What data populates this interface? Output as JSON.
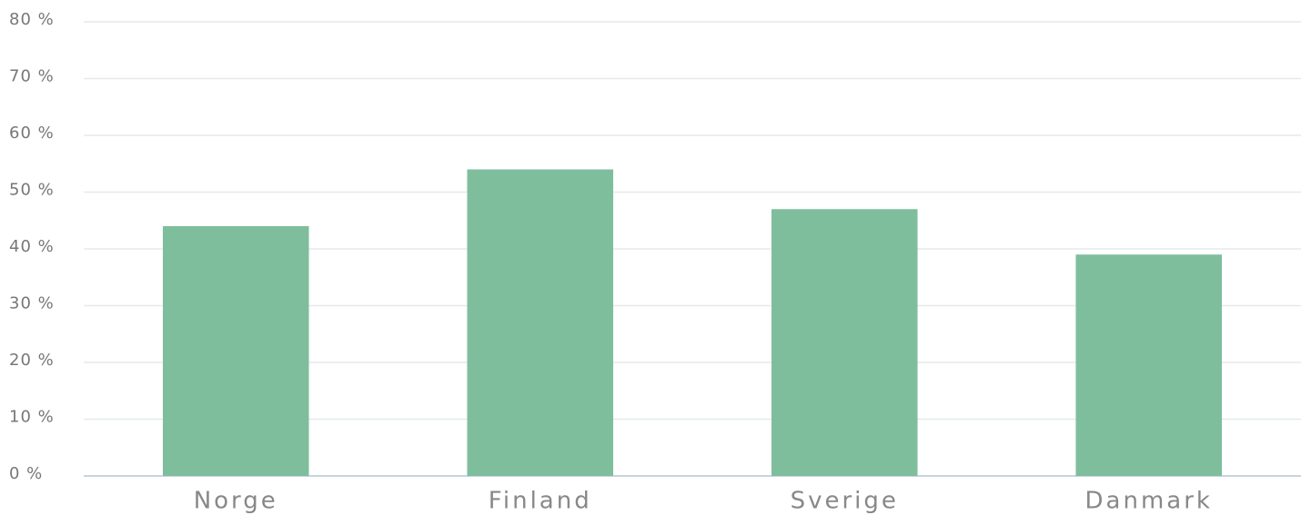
{
  "chart_data": {
    "type": "bar",
    "categories": [
      "Norge",
      "Finland",
      "Sverige",
      "Danmark"
    ],
    "values": [
      44,
      54,
      47,
      39
    ],
    "color": "#7fbe9c",
    "ylim": [
      0,
      80
    ],
    "yticks": [
      {
        "value": 0,
        "label": "0 %"
      },
      {
        "value": 10,
        "label": "10 %"
      },
      {
        "value": 20,
        "label": "20 %"
      },
      {
        "value": 30,
        "label": "30 %"
      },
      {
        "value": 40,
        "label": "40 %"
      },
      {
        "value": 50,
        "label": "50 %"
      },
      {
        "value": 60,
        "label": "60 %"
      },
      {
        "value": 70,
        "label": "70 %"
      },
      {
        "value": 80,
        "label": "80 %"
      }
    ],
    "grid": true
  }
}
